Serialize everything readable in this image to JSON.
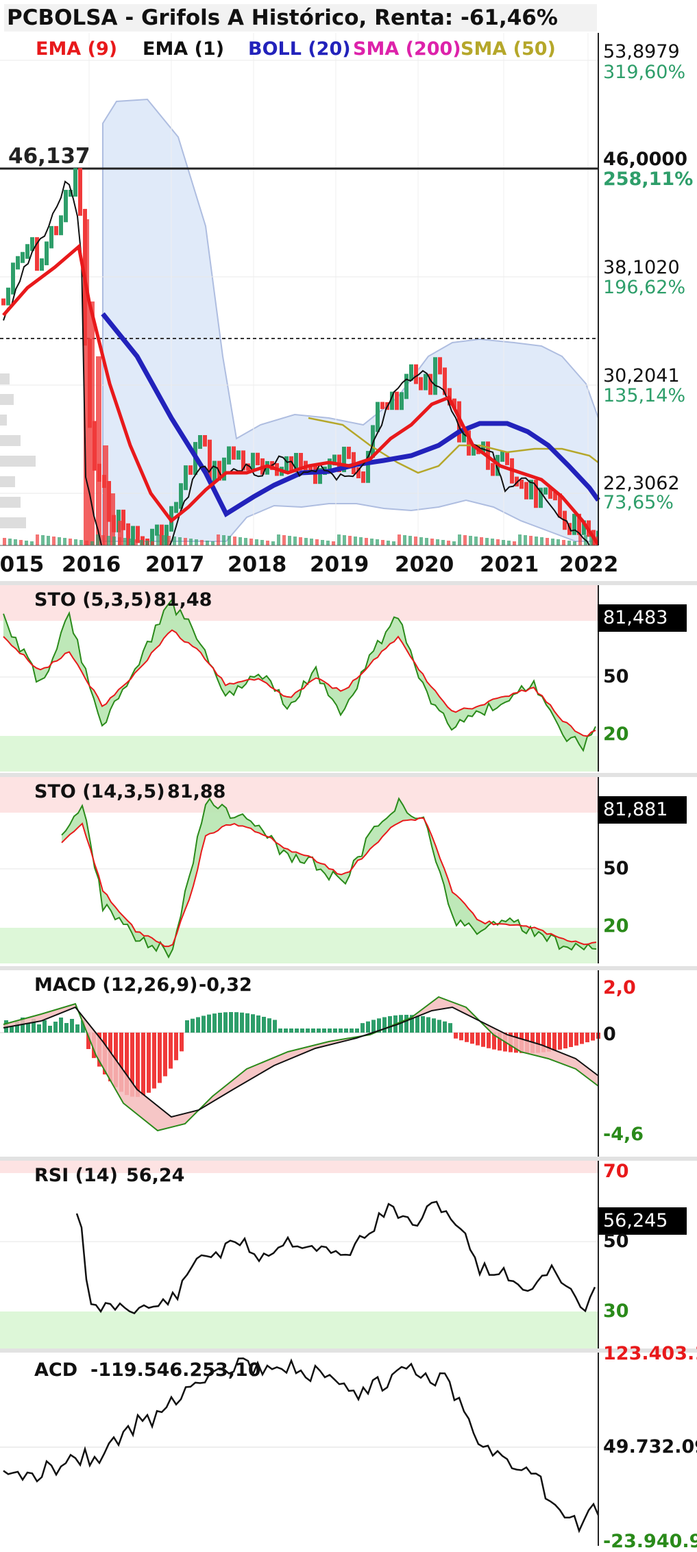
{
  "header": {
    "title": "PCBOLSA - Grifols A Histórico, Renta: -61,46%"
  },
  "legend": [
    {
      "label": "EMA (9)",
      "color": "#e8191b"
    },
    {
      "label": "EMA (1)",
      "color": "#111111"
    },
    {
      "label": "BOLL (20)",
      "color": "#2222bb"
    },
    {
      "label": "SMA (200)",
      "color": "#dd22aa"
    },
    {
      "label": "SMA (50)",
      "color": "#b5a72a"
    }
  ],
  "main": {
    "reference_label": "46,137",
    "price_axis": [
      {
        "price": "53,8979",
        "pct": "319,60%"
      },
      {
        "price": "46,0000",
        "pct": "258,11%"
      },
      {
        "price": "38,1020",
        "pct": "196,62%"
      },
      {
        "price": "30,2041",
        "pct": "135,14%"
      },
      {
        "price": "22,3062",
        "pct": "73,65%"
      }
    ],
    "years": [
      "2015",
      "2016",
      "2017",
      "2018",
      "2019",
      "2020",
      "2021",
      "2022"
    ]
  },
  "panels": {
    "sto1": {
      "title": "STO (5,3,5)",
      "value": "81,48",
      "badge": "81,483",
      "axis": [
        "50",
        "20"
      ]
    },
    "sto2": {
      "title": "STO (14,3,5)",
      "value": "81,88",
      "badge": "81,881",
      "axis": [
        "50",
        "20"
      ]
    },
    "macd": {
      "title": "MACD (12,26,9)",
      "value": "-0,32",
      "axis_top": "2,0",
      "axis_mid": "0",
      "axis_bottom": "-4,6"
    },
    "rsi": {
      "title": "RSI (14)",
      "value": "56,24",
      "badge": "56,245",
      "axis_top": "70",
      "axis_mid": "50",
      "axis_bottom": "30"
    },
    "acd": {
      "title": "ACD",
      "value": "-119.546.253,10",
      "axis_top": "123.403.1",
      "axis_mid": "49.732.09",
      "axis_bottom": "-23.940.9"
    }
  },
  "colors": {
    "up": "#2e9e6a",
    "down": "#f03a3a",
    "ema9": "#e8191b",
    "boll": "#2222bb",
    "sma50": "#b5a72a",
    "pct_text": "#2e9e6a",
    "overbought": "#fde3e3",
    "oversold": "#ddf7d8"
  },
  "chart_data": [
    {
      "type": "line",
      "title": "PCBOLSA - Grifols A Histórico, Renta: -61,46%",
      "x": [
        "2015",
        "2016",
        "2017",
        "2018",
        "2019",
        "2020",
        "2021",
        "2022"
      ],
      "ylim": [
        14.4,
        53.9
      ],
      "series": [
        {
          "name": "EMA (1)",
          "values": [
            35.0,
            42.0,
            14.0,
            25.5,
            24.6,
            31.0,
            22.0,
            14.4
          ]
        },
        {
          "name": "EMA (9)",
          "values": [
            34.0,
            44.5,
            18.0,
            24.8,
            25.0,
            29.5,
            23.5,
            15.0
          ]
        },
        {
          "name": "BOLL (20)",
          "values": [
            null,
            37.0,
            30.0,
            20.2,
            22.0,
            24.8,
            28.2,
            21.0
          ]
        },
        {
          "name": "SMA (50)",
          "values": [
            null,
            null,
            null,
            null,
            28.0,
            24.5,
            24.0,
            24.3
          ]
        }
      ]
    },
    {
      "type": "line",
      "title": "STO (5,3,5)",
      "x": [
        "2015",
        "2016",
        "2017",
        "2018",
        "2019",
        "2020",
        "2021",
        "2022"
      ],
      "ylim": [
        0,
        100
      ],
      "series": [
        {
          "name": "%K",
          "values": [
            88,
            70,
            55,
            85,
            50,
            95,
            25,
            15
          ]
        },
        {
          "name": "%D",
          "values": [
            85,
            75,
            55,
            80,
            55,
            90,
            30,
            20
          ]
        }
      ]
    },
    {
      "type": "line",
      "title": "STO (14,3,5)",
      "x": [
        "2015",
        "2016",
        "2017",
        "2018",
        "2019",
        "2020",
        "2021",
        "2022"
      ],
      "ylim": [
        0,
        100
      ],
      "series": [
        {
          "name": "%K",
          "values": [
            null,
            95,
            10,
            90,
            55,
            95,
            25,
            15
          ]
        },
        {
          "name": "%D",
          "values": [
            null,
            90,
            10,
            85,
            55,
            90,
            25,
            20
          ]
        }
      ]
    },
    {
      "type": "line",
      "title": "MACD (12,26,9)",
      "x": [
        "2015",
        "2016",
        "2017",
        "2018",
        "2019",
        "2020",
        "2021",
        "2022"
      ],
      "ylim": [
        -4.6,
        2.0
      ],
      "series": [
        {
          "name": "MACD",
          "values": [
            0.2,
            0.5,
            -4.5,
            -1.0,
            -0.2,
            1.0,
            -0.8,
            -2.5
          ]
        },
        {
          "name": "Signal",
          "values": [
            0.1,
            0.6,
            -3.0,
            -1.4,
            -0.3,
            0.6,
            -0.2,
            -2.0
          ]
        }
      ]
    },
    {
      "type": "line",
      "title": "RSI (14)",
      "x": [
        "2015",
        "2016",
        "2017",
        "2018",
        "2019",
        "2020",
        "2021",
        "2022"
      ],
      "ylim": [
        20,
        70
      ],
      "series": [
        {
          "name": "RSI (14)",
          "values": [
            null,
            60,
            30,
            48,
            50,
            62,
            42,
            34
          ]
        }
      ]
    },
    {
      "type": "line",
      "title": "ACD",
      "x": [
        "2015",
        "2016",
        "2017",
        "2018",
        "2019",
        "2020",
        "2021",
        "2022"
      ],
      "series": [
        {
          "name": "ACD",
          "values": [
            30000000,
            40000000,
            60000000,
            115000000,
            105000000,
            110000000,
            20000000,
            -10000000
          ]
        }
      ]
    }
  ]
}
